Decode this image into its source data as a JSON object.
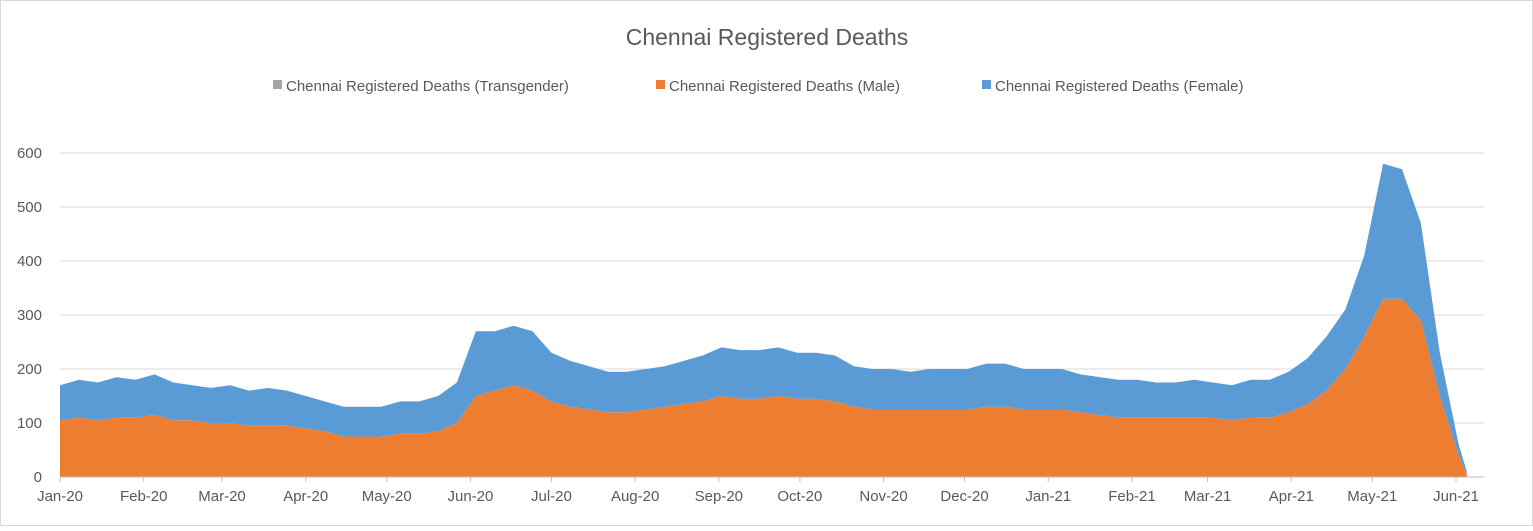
{
  "chart_data": {
    "type": "area",
    "stacked": true,
    "title": "Chennai Registered Deaths",
    "xlabel": "",
    "ylabel": "",
    "ylim": [
      0,
      650
    ],
    "yticks": [
      0,
      100,
      200,
      300,
      400,
      500,
      600
    ],
    "xtick_labels": [
      "Jan-20",
      "Feb-20",
      "Mar-20",
      "Apr-20",
      "May-20",
      "Jun-20",
      "Jul-20",
      "Aug-20",
      "Sep-20",
      "Oct-20",
      "Nov-20",
      "Dec-20",
      "Jan-21",
      "Feb-21",
      "Mar-21",
      "Apr-21",
      "May-21",
      "Jun-21"
    ],
    "xtick_dates": [
      "2020-01-01",
      "2020-02-01",
      "2020-03-01",
      "2020-04-01",
      "2020-05-01",
      "2020-06-01",
      "2020-07-01",
      "2020-08-01",
      "2020-09-01",
      "2020-10-01",
      "2020-11-01",
      "2020-12-01",
      "2021-01-01",
      "2021-02-01",
      "2021-03-01",
      "2021-04-01",
      "2021-05-01",
      "2021-06-01"
    ],
    "grid": true,
    "legend_position": "top",
    "x": [
      "2020-01-01",
      "2020-01-08",
      "2020-01-15",
      "2020-01-22",
      "2020-01-29",
      "2020-02-05",
      "2020-02-12",
      "2020-02-19",
      "2020-02-26",
      "2020-03-04",
      "2020-03-11",
      "2020-03-18",
      "2020-03-25",
      "2020-04-01",
      "2020-04-08",
      "2020-04-15",
      "2020-04-22",
      "2020-04-29",
      "2020-05-06",
      "2020-05-13",
      "2020-05-20",
      "2020-05-27",
      "2020-06-03",
      "2020-06-10",
      "2020-06-17",
      "2020-06-24",
      "2020-07-01",
      "2020-07-08",
      "2020-07-15",
      "2020-07-22",
      "2020-07-29",
      "2020-08-05",
      "2020-08-12",
      "2020-08-19",
      "2020-08-26",
      "2020-09-02",
      "2020-09-09",
      "2020-09-16",
      "2020-09-23",
      "2020-09-30",
      "2020-10-07",
      "2020-10-14",
      "2020-10-21",
      "2020-10-28",
      "2020-11-04",
      "2020-11-11",
      "2020-11-18",
      "2020-11-25",
      "2020-12-02",
      "2020-12-09",
      "2020-12-16",
      "2020-12-23",
      "2020-12-30",
      "2021-01-06",
      "2021-01-13",
      "2021-01-20",
      "2021-01-27",
      "2021-02-03",
      "2021-02-10",
      "2021-02-17",
      "2021-02-24",
      "2021-03-03",
      "2021-03-10",
      "2021-03-17",
      "2021-03-24",
      "2021-03-31",
      "2021-04-07",
      "2021-04-14",
      "2021-04-21",
      "2021-04-28",
      "2021-05-05",
      "2021-05-12",
      "2021-05-19",
      "2021-05-26",
      "2021-06-02",
      "2021-06-05"
    ],
    "series": [
      {
        "name": "Chennai Registered Deaths (Transgender)",
        "color": "#a5a5a5",
        "values": [
          0,
          0,
          0,
          0,
          0,
          0,
          0,
          0,
          0,
          0,
          0,
          0,
          0,
          0,
          0,
          0,
          0,
          0,
          0,
          0,
          0,
          0,
          0,
          0,
          0,
          0,
          0,
          0,
          0,
          0,
          0,
          0,
          0,
          0,
          0,
          0,
          0,
          0,
          0,
          0,
          0,
          0,
          0,
          0,
          0,
          0,
          0,
          0,
          0,
          0,
          0,
          0,
          0,
          0,
          0,
          0,
          0,
          0,
          0,
          0,
          0,
          0,
          0,
          0,
          0,
          0,
          0,
          0,
          0,
          0,
          0,
          0,
          0,
          0,
          0,
          0
        ]
      },
      {
        "name": "Chennai Registered Deaths (Male)",
        "color": "#ed7d31",
        "values": [
          105,
          110,
          105,
          110,
          110,
          115,
          105,
          105,
          100,
          100,
          95,
          95,
          95,
          90,
          85,
          75,
          75,
          75,
          80,
          80,
          85,
          100,
          150,
          160,
          170,
          160,
          140,
          130,
          125,
          120,
          120,
          125,
          130,
          135,
          140,
          150,
          145,
          145,
          150,
          145,
          145,
          140,
          130,
          125,
          125,
          125,
          125,
          125,
          125,
          130,
          130,
          125,
          125,
          125,
          120,
          115,
          110,
          110,
          110,
          110,
          110,
          110,
          105,
          110,
          110,
          120,
          135,
          160,
          200,
          260,
          330,
          330,
          290,
          150,
          40,
          5
        ]
      },
      {
        "name": "Chennai Registered Deaths (Female)",
        "color": "#5b9bd5",
        "values": [
          65,
          70,
          70,
          75,
          70,
          75,
          70,
          65,
          65,
          70,
          65,
          70,
          65,
          60,
          55,
          55,
          55,
          55,
          60,
          60,
          65,
          75,
          120,
          110,
          110,
          110,
          90,
          85,
          80,
          75,
          75,
          75,
          75,
          80,
          85,
          90,
          90,
          90,
          90,
          85,
          85,
          85,
          75,
          75,
          75,
          70,
          75,
          75,
          75,
          80,
          80,
          75,
          75,
          75,
          70,
          70,
          70,
          70,
          65,
          65,
          70,
          65,
          65,
          70,
          70,
          75,
          85,
          100,
          110,
          150,
          250,
          240,
          180,
          80,
          20,
          5
        ]
      }
    ]
  }
}
